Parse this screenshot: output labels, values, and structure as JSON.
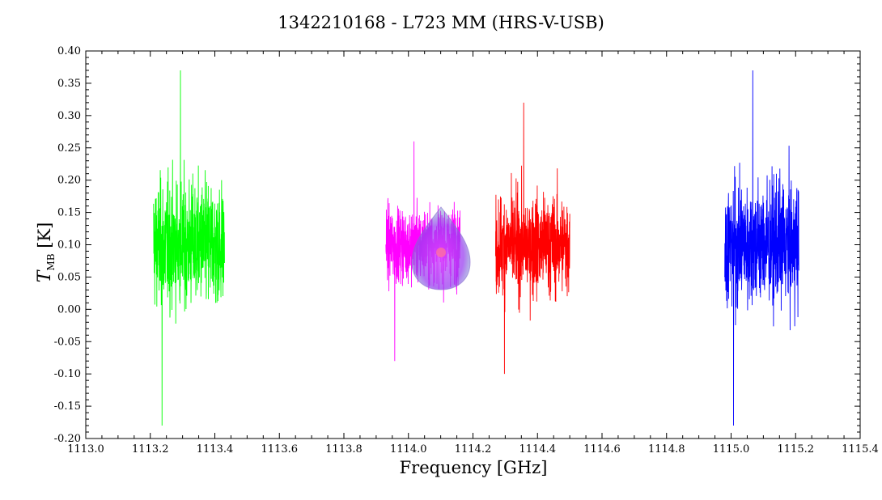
{
  "chart_data": {
    "type": "line",
    "title": "1342210168 - L723 MM (HRS-V-USB)",
    "xlabel": "Frequency [GHz]",
    "ylabel_symbol": "T",
    "ylabel_sub": "MB",
    "ylabel_unit": "[K]",
    "xlim": [
      1113.0,
      1115.4
    ],
    "ylim": [
      -0.2,
      0.4
    ],
    "x_ticks": [
      "1113.0",
      "1113.2",
      "1113.4",
      "1113.6",
      "1113.8",
      "1114.0",
      "1114.2",
      "1114.4",
      "1114.6",
      "1114.8",
      "1115.0",
      "1115.2",
      "1115.4"
    ],
    "y_ticks": [
      "-0.20",
      "-0.15",
      "-0.10",
      "-0.05",
      "0.00",
      "0.05",
      "0.10",
      "0.15",
      "0.20",
      "0.25",
      "0.30",
      "0.35",
      "0.40"
    ],
    "series": [
      {
        "color": "#00ff00",
        "x_range": [
          1113.21,
          1113.43
        ],
        "mean": 0.1,
        "max": 0.37,
        "min": -0.18
      },
      {
        "color": "#ff00ff",
        "x_range": [
          1113.93,
          1114.16
        ],
        "mean": 0.1,
        "max": 0.26,
        "min": -0.08
      },
      {
        "color": "#ff0000",
        "x_range": [
          1114.27,
          1114.5
        ],
        "mean": 0.1,
        "max": 0.32,
        "min": -0.1
      },
      {
        "color": "#0000ff",
        "x_range": [
          1114.98,
          1115.21
        ],
        "mean": 0.1,
        "max": 0.37,
        "min": -0.18
      }
    ],
    "grid": false,
    "legend": "none"
  }
}
